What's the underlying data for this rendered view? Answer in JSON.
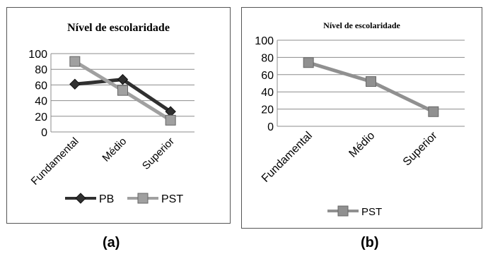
{
  "chart_data": [
    {
      "panel_label": "(a)",
      "type": "line",
      "title": "Nível de escolaridade",
      "categories": [
        "Fundamental",
        "Médio",
        "Superior"
      ],
      "ylim": [
        0,
        100
      ],
      "yticks": [
        0,
        20,
        40,
        60,
        80,
        100
      ],
      "grid": true,
      "legend_position": "bottom",
      "series": [
        {
          "name": "PB",
          "marker": "diamond",
          "color": "#303030",
          "values": [
            61,
            67,
            26
          ]
        },
        {
          "name": "PST",
          "marker": "square",
          "color": "#a0a0a0",
          "values": [
            90,
            53,
            15
          ]
        }
      ]
    },
    {
      "panel_label": "(b)",
      "type": "line",
      "title": "Nível de escolaridade",
      "categories": [
        "Fundamental",
        "Médio",
        "Superior"
      ],
      "ylim": [
        0,
        100
      ],
      "yticks": [
        0,
        20,
        40,
        60,
        80,
        100
      ],
      "grid": true,
      "legend_position": "bottom",
      "series": [
        {
          "name": "PST",
          "marker": "square",
          "color": "#909090",
          "values": [
            74,
            52,
            17
          ]
        }
      ]
    }
  ]
}
